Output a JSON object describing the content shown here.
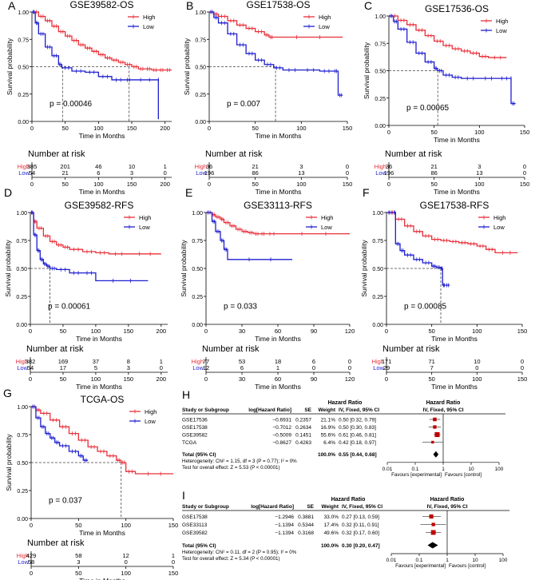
{
  "colors": {
    "high": "#e8303a",
    "low": "#1f1fd0",
    "axis": "#000000",
    "median": "#444444",
    "forest_box": "#c00000"
  },
  "legend": {
    "high": "High",
    "low": "Low"
  },
  "common": {
    "xlabel": "Time in Months",
    "ylabel": "Survival probability",
    "risk_title": "Number at risk",
    "risk_row_high": "High",
    "risk_row_low": "Low"
  },
  "chart_data": [
    {
      "type": "line",
      "panel": "A",
      "title": "GSE39582-OS",
      "xlim": [
        0,
        210
      ],
      "xticks": [
        0,
        50,
        100,
        150,
        200
      ],
      "ylim": [
        0,
        1.0
      ],
      "yticks": [
        0,
        0.25,
        0.5,
        0.75,
        1.0
      ],
      "ytick_labels": [
        "0.00",
        "0.25",
        "0.50",
        "0.75",
        "1.00"
      ],
      "pvalue": "p = 0.00046",
      "median": [
        46,
        146
      ],
      "series": [
        {
          "name": "High",
          "x": [
            0,
            10,
            20,
            30,
            40,
            50,
            60,
            70,
            80,
            90,
            100,
            110,
            120,
            130,
            140,
            150,
            160,
            170,
            180,
            190,
            200,
            210
          ],
          "y": [
            1.0,
            0.96,
            0.92,
            0.87,
            0.82,
            0.78,
            0.74,
            0.7,
            0.67,
            0.64,
            0.61,
            0.58,
            0.56,
            0.54,
            0.52,
            0.5,
            0.48,
            0.48,
            0.47,
            0.47,
            0.47,
            0.47
          ]
        },
        {
          "name": "Low",
          "x": [
            0,
            5,
            10,
            20,
            30,
            40,
            45,
            60,
            80,
            100,
            120,
            140,
            150,
            190,
            190
          ],
          "y": [
            1.0,
            0.9,
            0.8,
            0.68,
            0.6,
            0.52,
            0.49,
            0.46,
            0.45,
            0.41,
            0.38,
            0.38,
            0.38,
            0.38,
            0.02
          ]
        }
      ],
      "risk": {
        "xticks": [
          0,
          50,
          100,
          150,
          200
        ],
        "high": [
          "385",
          "201",
          "46",
          "10",
          "1"
        ],
        "low": [
          "54",
          "21",
          "6",
          "3",
          "0"
        ]
      }
    },
    {
      "type": "line",
      "panel": "B",
      "title": "GSE17538-OS",
      "xlim": [
        0,
        150
      ],
      "xticks": [
        0,
        50,
        100,
        150
      ],
      "ylim": [
        0,
        1.0
      ],
      "yticks": [
        0,
        0.25,
        0.5,
        0.75,
        1.0
      ],
      "ytick_labels": [
        "0.00",
        "0.25",
        "0.50",
        "0.75",
        "1.00"
      ],
      "pvalue": "p = 0.007",
      "median": [
        72
      ],
      "series": [
        {
          "name": "High",
          "x": [
            0,
            5,
            10,
            20,
            30,
            40,
            50,
            60,
            65,
            70,
            145
          ],
          "y": [
            1.0,
            0.98,
            0.96,
            0.92,
            0.88,
            0.85,
            0.82,
            0.79,
            0.77,
            0.77,
            0.77
          ]
        },
        {
          "name": "Low",
          "x": [
            0,
            5,
            10,
            20,
            30,
            40,
            50,
            60,
            70,
            80,
            100,
            120,
            135,
            140,
            145
          ],
          "y": [
            1.0,
            0.95,
            0.9,
            0.8,
            0.7,
            0.62,
            0.56,
            0.52,
            0.49,
            0.47,
            0.47,
            0.46,
            0.46,
            0.24,
            0.24
          ]
        }
      ],
      "risk": {
        "xticks": [
          0,
          50,
          100,
          150
        ],
        "high": [
          "36",
          "21",
          "3",
          "0"
        ],
        "low": [
          "196",
          "86",
          "13",
          "0"
        ]
      }
    },
    {
      "type": "line",
      "panel": "C",
      "title": "GSE17536-OS",
      "xlim": [
        0,
        150
      ],
      "xticks": [
        0,
        50,
        100,
        150
      ],
      "ylim": [
        0,
        1.0
      ],
      "yticks": [
        0,
        0.25,
        0.5,
        0.75,
        1.0
      ],
      "ytick_labels": [
        "0.00",
        "0.25",
        "0.50",
        "0.75",
        "1.00"
      ],
      "pvalue": "p = 0.00065",
      "median": [
        54
      ],
      "series": [
        {
          "name": "High",
          "x": [
            0,
            10,
            20,
            30,
            40,
            50,
            60,
            70,
            80,
            90,
            100,
            110,
            130
          ],
          "y": [
            1.0,
            0.96,
            0.92,
            0.87,
            0.82,
            0.77,
            0.73,
            0.7,
            0.68,
            0.66,
            0.63,
            0.62,
            0.62
          ]
        },
        {
          "name": "Low",
          "x": [
            0,
            5,
            10,
            20,
            30,
            40,
            50,
            54,
            60,
            70,
            80,
            100,
            120,
            135,
            135,
            140
          ],
          "y": [
            1.0,
            0.95,
            0.88,
            0.76,
            0.66,
            0.58,
            0.52,
            0.5,
            0.46,
            0.44,
            0.43,
            0.43,
            0.43,
            0.43,
            0.2,
            0.2
          ]
        }
      ],
      "risk": {
        "xticks": [
          0,
          50,
          100,
          150
        ],
        "high": [
          "36",
          "21",
          "3",
          "0"
        ],
        "low": [
          "196",
          "86",
          "13",
          "0"
        ]
      }
    },
    {
      "type": "line",
      "panel": "D",
      "title": "GSE39582-RFS",
      "xlim": [
        0,
        210
      ],
      "xticks": [
        0,
        50,
        100,
        150,
        200
      ],
      "ylim": [
        0,
        1.0
      ],
      "yticks": [
        0,
        0.25,
        0.5,
        0.75,
        1.0
      ],
      "ytick_labels": [
        "0.00",
        "0.25",
        "0.50",
        "0.75",
        "1.00"
      ],
      "pvalue": "p = 0.00061",
      "median": [
        30
      ],
      "series": [
        {
          "name": "High",
          "x": [
            0,
            5,
            10,
            20,
            30,
            40,
            50,
            60,
            80,
            100,
            120,
            150,
            200
          ],
          "y": [
            1.0,
            0.92,
            0.86,
            0.79,
            0.74,
            0.71,
            0.69,
            0.67,
            0.65,
            0.64,
            0.63,
            0.63,
            0.63
          ]
        },
        {
          "name": "Low",
          "x": [
            0,
            5,
            10,
            15,
            20,
            25,
            30,
            40,
            60,
            80,
            100,
            180
          ],
          "y": [
            1.0,
            0.8,
            0.66,
            0.58,
            0.54,
            0.52,
            0.5,
            0.49,
            0.46,
            0.46,
            0.39,
            0.39
          ]
        }
      ],
      "risk": {
        "xticks": [
          0,
          50,
          100,
          150,
          200
        ],
        "high": [
          "382",
          "169",
          "37",
          "8",
          "1"
        ],
        "low": [
          "54",
          "17",
          "5",
          "3",
          "0"
        ]
      }
    },
    {
      "type": "line",
      "panel": "E",
      "title": "GSE33113-RFS",
      "xlim": [
        0,
        120
      ],
      "xticks": [
        0,
        30,
        60,
        90,
        120
      ],
      "ylim": [
        0,
        1.0
      ],
      "yticks": [
        0,
        0.25,
        0.5,
        0.75,
        1.0
      ],
      "ytick_labels": [
        "0.00",
        "0.25",
        "0.50",
        "0.75",
        "1.00"
      ],
      "pvalue": "p = 0.033",
      "median": [],
      "series": [
        {
          "name": "High",
          "x": [
            0,
            5,
            8,
            12,
            15,
            20,
            25,
            30,
            35,
            40,
            45,
            50,
            60,
            120
          ],
          "y": [
            1.0,
            0.98,
            0.96,
            0.94,
            0.91,
            0.88,
            0.85,
            0.83,
            0.82,
            0.81,
            0.81,
            0.81,
            0.81,
            0.81
          ]
        },
        {
          "name": "Low",
          "x": [
            0,
            5,
            8,
            12,
            15,
            18,
            72
          ],
          "y": [
            1.0,
            0.92,
            0.83,
            0.75,
            0.67,
            0.58,
            0.58
          ]
        }
      ],
      "risk": {
        "xticks": [
          0,
          30,
          60,
          90,
          120
        ],
        "high": [
          "77",
          "53",
          "18",
          "6",
          "0"
        ],
        "low": [
          "12",
          "6",
          "1",
          "0",
          "0"
        ]
      }
    },
    {
      "type": "line",
      "panel": "F",
      "title": "GSE17538-RFS",
      "xlim": [
        0,
        150
      ],
      "xticks": [
        0,
        50,
        100,
        150
      ],
      "ylim": [
        0,
        1.0
      ],
      "yticks": [
        0,
        0.25,
        0.5,
        0.75,
        1.0
      ],
      "ytick_labels": [
        "0.00",
        "0.25",
        "0.50",
        "0.75",
        "1.00"
      ],
      "pvalue": "p = 0.00085",
      "median": [
        60
      ],
      "series": [
        {
          "name": "High",
          "x": [
            0,
            10,
            20,
            30,
            40,
            50,
            60,
            70,
            80,
            90,
            100,
            110,
            120,
            145
          ],
          "y": [
            1.0,
            0.94,
            0.88,
            0.83,
            0.79,
            0.76,
            0.75,
            0.74,
            0.73,
            0.72,
            0.7,
            0.67,
            0.64,
            0.64
          ]
        },
        {
          "name": "Low",
          "x": [
            0,
            8,
            10,
            15,
            20,
            30,
            40,
            50,
            55,
            60,
            62,
            65,
            70
          ],
          "y": [
            1.0,
            1.0,
            0.72,
            0.66,
            0.62,
            0.58,
            0.55,
            0.52,
            0.51,
            0.5,
            0.35,
            0.35,
            0.35
          ]
        }
      ],
      "risk": {
        "xticks": [
          0,
          50,
          100,
          150
        ],
        "high": [
          "171",
          "71",
          "10",
          "0"
        ],
        "low": [
          "29",
          "7",
          "0",
          "0"
        ]
      }
    },
    {
      "type": "line",
      "panel": "G",
      "title": "TCGA-OS",
      "xlim": [
        0,
        150
      ],
      "xticks": [
        0,
        50,
        100,
        150
      ],
      "ylim": [
        0,
        1.0
      ],
      "yticks": [
        0,
        0.25,
        0.5,
        0.75,
        1.0
      ],
      "ytick_labels": [
        "0.00",
        "0.25",
        "0.50",
        "0.75",
        "1.00"
      ],
      "pvalue": "p = 0.037",
      "median": [
        95
      ],
      "series": [
        {
          "name": "High",
          "x": [
            0,
            5,
            10,
            20,
            30,
            40,
            50,
            60,
            70,
            80,
            90,
            95,
            100,
            110,
            150
          ],
          "y": [
            1.0,
            0.97,
            0.94,
            0.88,
            0.82,
            0.76,
            0.7,
            0.64,
            0.6,
            0.56,
            0.52,
            0.5,
            0.42,
            0.4,
            0.4
          ]
        },
        {
          "name": "Low",
          "x": [
            0,
            5,
            10,
            15,
            20,
            25,
            30,
            40,
            50,
            55,
            60
          ],
          "y": [
            1.0,
            0.9,
            0.82,
            0.76,
            0.72,
            0.68,
            0.65,
            0.6,
            0.56,
            0.52,
            0.52
          ]
        }
      ],
      "risk": {
        "xticks": [
          0,
          50,
          100,
          150
        ],
        "high": [
          "429",
          "58",
          "12",
          "1"
        ],
        "low": [
          "58",
          "3",
          "0",
          "0"
        ]
      }
    }
  ],
  "forest_h": {
    "panel": "H",
    "hdr_group": "Hazard Ratio",
    "hdr_group2": "Hazard Ratio",
    "hdr_cols": [
      "Study or Subgroup",
      "log[Hazard Ratio]",
      "SE",
      "Weight",
      "IV, Fixed, 95% CI",
      "IV, Fixed, 95% CI"
    ],
    "rows": [
      {
        "study": "GSE17536",
        "log": "−0.6931",
        "se": "0.2357",
        "weight": "21.1%",
        "ci": "0.50 [0.32, 0.79]",
        "hr": 0.5,
        "lo": 0.32,
        "hi": 0.79,
        "w": 21.1
      },
      {
        "study": "GSE17538",
        "log": "−0.7012",
        "se": "0.2634",
        "weight": "16.9%",
        "ci": "0.50 [0.30, 0.83]",
        "hr": 0.5,
        "lo": 0.3,
        "hi": 0.83,
        "w": 16.9
      },
      {
        "study": "GSE39582",
        "log": "−0.5009",
        "se": "0.1451",
        "weight": "55.6%",
        "ci": "0.61 [0.46, 0.81]",
        "hr": 0.61,
        "lo": 0.46,
        "hi": 0.81,
        "w": 55.6
      },
      {
        "study": "TCGA",
        "log": "−0.8627",
        "se": "0.4263",
        "weight": "6.4%",
        "ci": "0.42 [0.18, 0.97]",
        "hr": 0.42,
        "lo": 0.18,
        "hi": 0.97,
        "w": 6.4
      }
    ],
    "total_label": "Total (95% CI)",
    "total_weight": "100.0%",
    "total_ci": "0.55 [0.44, 0.68]",
    "total": {
      "hr": 0.55,
      "lo": 0.44,
      "hi": 0.68
    },
    "heterogeneity": "Heterogeneity: Chi² = 1.15, df = 3 (P = 0.77); I² = 0%",
    "overall": "Test for overall effect: Z = 5.53 (P < 0.00001)",
    "xticks": [
      0.01,
      0.1,
      1,
      10,
      100
    ],
    "xtick_labels": [
      "0.01",
      "0.1",
      "1",
      "10",
      "100"
    ],
    "favours_left": "Favours [experimental]",
    "favours_right": "Favours [control]"
  },
  "forest_i": {
    "panel": "I",
    "hdr_group": "Hazard Ratio",
    "hdr_group2": "Hazard Ratio",
    "hdr_cols": [
      "Study or Subgroup",
      "log[Hazard Ratio]",
      "SE",
      "Weight",
      "IV, Fixed, 95% CI",
      "IV, Fixed, 95% CI"
    ],
    "rows": [
      {
        "study": "GSE17538",
        "log": "−1.2946",
        "se": "0.3881",
        "weight": "33.0%",
        "ci": "0.27 [0.13, 0.59]",
        "hr": 0.27,
        "lo": 0.13,
        "hi": 0.59,
        "w": 33.0
      },
      {
        "study": "GSE33113",
        "log": "−1.1394",
        "se": "0.5344",
        "weight": "17.4%",
        "ci": "0.32 [0.11, 0.91]",
        "hr": 0.32,
        "lo": 0.11,
        "hi": 0.91,
        "w": 17.4
      },
      {
        "study": "GSE39582",
        "log": "−1.1394",
        "se": "0.3168",
        "weight": "49.6%",
        "ci": "0.32 [0.17, 0.60]",
        "hr": 0.32,
        "lo": 0.17,
        "hi": 0.6,
        "w": 49.6
      }
    ],
    "total_label": "Total (95% CI)",
    "total_weight": "100.0%",
    "total_ci": "0.30 [0.20, 0.47]",
    "total": {
      "hr": 0.3,
      "lo": 0.2,
      "hi": 0.47
    },
    "heterogeneity": "Heterogeneity: Chi² = 0.11, df = 2 (P = 0.95); I² = 0%",
    "overall": "Test for overall effect: Z = 5.34 (P < 0.00001)",
    "xticks": [
      0.01,
      0.1,
      1,
      10,
      100
    ],
    "xtick_labels": [
      "0.01",
      "0.1",
      "1",
      "10",
      "100"
    ],
    "favours_left": "Favours [experimental]",
    "favours_right": "Favours [control]"
  }
}
